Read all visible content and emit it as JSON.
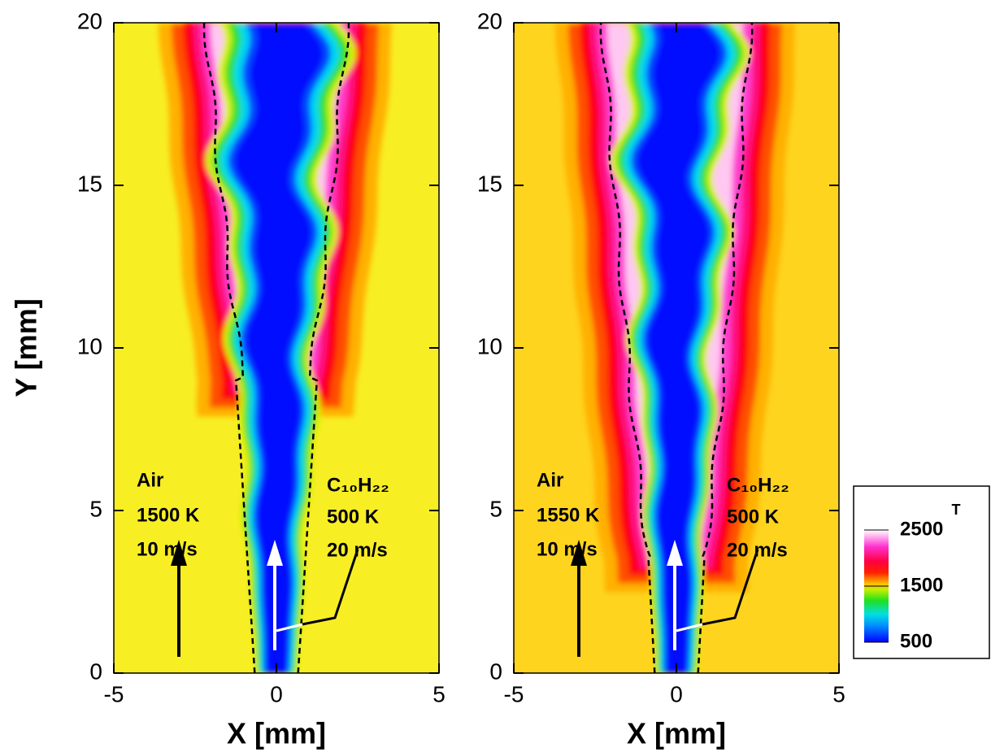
{
  "chart_data": [
    {
      "type": "contour",
      "xlabel": "X [mm]",
      "ylabel": "Y [mm]",
      "xlim": [
        -5,
        5
      ],
      "ylim": [
        0,
        20
      ],
      "xticks": [
        -5,
        0,
        5
      ],
      "yticks": [
        0,
        5,
        10,
        15,
        20
      ],
      "annotations": [
        "Air",
        "1500 K",
        "10 m/s",
        "C₁₀H₂₂",
        "500 K",
        "20 m/s"
      ]
    },
    {
      "type": "contour",
      "xlabel": "X [mm]",
      "xlim": [
        -5,
        5
      ],
      "ylim": [
        0,
        20
      ],
      "xticks": [
        -5,
        0,
        5
      ],
      "yticks": [
        0,
        5,
        10,
        15,
        20
      ],
      "annotations": [
        "Air",
        "1550 K",
        "10 m/s",
        "C₁₀H₂₂",
        "500 K",
        "20 m/s"
      ],
      "colorbar": {
        "title": "T",
        "lim": [
          500,
          2500
        ],
        "ticks": [
          500,
          1500,
          2500
        ]
      }
    }
  ]
}
